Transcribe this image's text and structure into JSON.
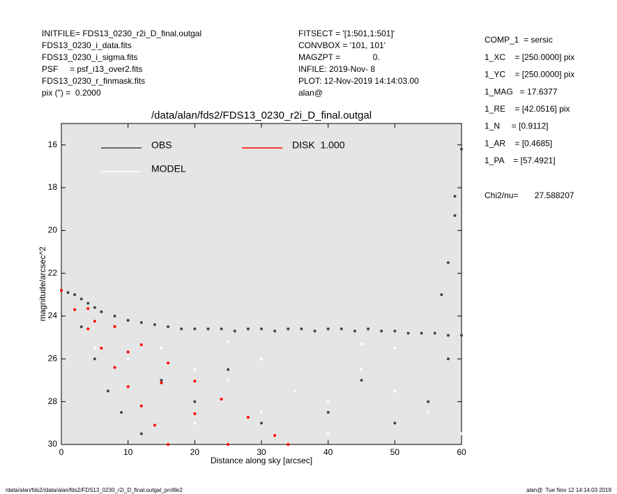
{
  "chart_data": {
    "type": "scatter",
    "title": "/data/alan/fds2/FDS13_0230_r2i_D_final.outgal",
    "x_label": "Distance along sky [arcsec]",
    "y_label": "magnitude/arcsec^2",
    "annotations": {
      "left": [
        "INITFILE= FDS13_0230_r2i_D_final.outgal",
        "FDS13_0230_i_data.fits",
        "FDS13_0230_i_sigma.fits",
        "PSF     = psf_i13_over2.fits",
        "FDS13_0230_r_finmask.fits",
        "pix (\") =  0.2000"
      ],
      "middle": [
        "FITSECT = '[1:501,1:501]'",
        "CONVBOX = '101, 101'",
        "MAGZPT =              0.",
        "INFILE: 2019-Nov- 8",
        "PLOT: 12-Nov-2019 14:14:03.00",
        "alan@"
      ],
      "right": [
        "COMP_1  = sersic",
        "1_XC    = [250.0000] pix",
        "1_YC    = [250.0000] pix",
        "1_MAG   = 17.6377",
        "1_RE    = [42.0516] pix",
        "1_N     = [0.9112]",
        "1_AR    = [0.4685]",
        "1_PA    = [57.4921]"
      ],
      "chi2": "Chi2/nu=       27.588207",
      "footer_left": "/data/alan/fds2//data/alan/fds2/FDS13_0230_r2i_D_final.outgal_profile2",
      "footer_right": "alan@  Tue Nov 12 14:14:03 2019"
    },
    "xlim": [
      0,
      60
    ],
    "xticks": [
      0,
      10,
      20,
      30,
      40,
      50,
      60
    ],
    "ylim": [
      15,
      30
    ],
    "yticks": [
      16,
      18,
      20,
      22,
      24,
      26,
      28,
      30
    ],
    "y_inverted": true,
    "background": "#e5e5e5",
    "series": [
      {
        "name": "OBS",
        "color": "#444444",
        "x": [
          0,
          1,
          2,
          3,
          4,
          5,
          6,
          8,
          10,
          12,
          14,
          16,
          18,
          20,
          22,
          24,
          26,
          28,
          30,
          32,
          34,
          36,
          38,
          40,
          42,
          44,
          46,
          48,
          50,
          52,
          54,
          56,
          58,
          60,
          3,
          5,
          7,
          9,
          12,
          15,
          20,
          25,
          30,
          35,
          40,
          45,
          50,
          55,
          58,
          57,
          58,
          59,
          59,
          60
        ],
        "y": [
          22.8,
          22.9,
          23.0,
          23.2,
          23.4,
          23.6,
          23.8,
          24.0,
          24.2,
          24.3,
          24.4,
          24.5,
          24.6,
          24.6,
          24.6,
          24.6,
          24.7,
          24.6,
          24.6,
          24.7,
          24.6,
          24.6,
          24.7,
          24.6,
          24.6,
          24.7,
          24.6,
          24.7,
          24.7,
          24.8,
          24.8,
          24.8,
          24.9,
          24.9,
          24.5,
          26,
          27.5,
          28.5,
          29.5,
          27,
          28,
          26.5,
          29,
          27.5,
          28.5,
          27,
          29,
          28,
          26,
          23,
          21.5,
          19.3,
          18.4,
          16.2
        ]
      },
      {
        "name": "MODEL",
        "color": "#ffffff",
        "x": [
          5,
          10,
          15,
          20,
          25,
          30,
          35,
          40,
          45,
          50,
          55,
          60,
          20,
          30,
          40,
          50,
          25,
          45
        ],
        "y": [
          25.5,
          26,
          25.5,
          26.5,
          27,
          26,
          27.5,
          28,
          26.5,
          27.5,
          28.5,
          29.5,
          29,
          28.5,
          29.5,
          25.5,
          25.2,
          25.3
        ]
      },
      {
        "name": "DISK  1.000",
        "color": "#ff0000",
        "x": [
          0,
          2,
          4,
          6,
          8,
          10,
          12,
          14,
          16,
          4,
          8,
          12,
          16,
          20,
          24,
          28,
          32,
          34,
          5,
          10,
          15,
          20,
          25
        ],
        "y": [
          22.8,
          23.7,
          24.6,
          25.5,
          26.4,
          27.3,
          28.2,
          29.1,
          30.0,
          23.65,
          24.49,
          25.34,
          26.19,
          27.04,
          27.88,
          28.73,
          29.58,
          30.0,
          24.24,
          25.68,
          27.12,
          28.56,
          30.0
        ]
      }
    ]
  }
}
